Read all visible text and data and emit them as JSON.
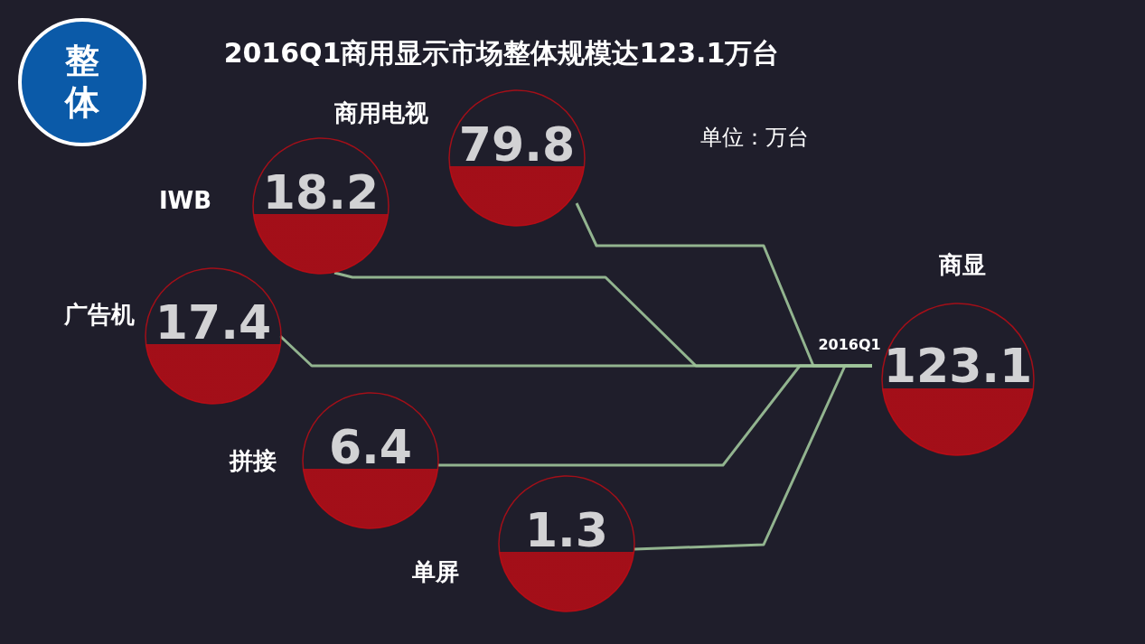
{
  "chart_data": {
    "type": "other",
    "title": "2016Q1商用显示市场整体规模达123.1万台",
    "subtitle": "单位：万台",
    "categories": [
      "商用电视",
      "IWB",
      "广告机",
      "拼接",
      "单屏",
      "商显"
    ],
    "values": [
      79.8,
      18.2,
      17.4,
      6.4,
      1.3,
      123.1
    ],
    "color": "#c40b14",
    "data_labels": true,
    "annotations": [
      "整体",
      "2016Q1"
    ]
  }
}
